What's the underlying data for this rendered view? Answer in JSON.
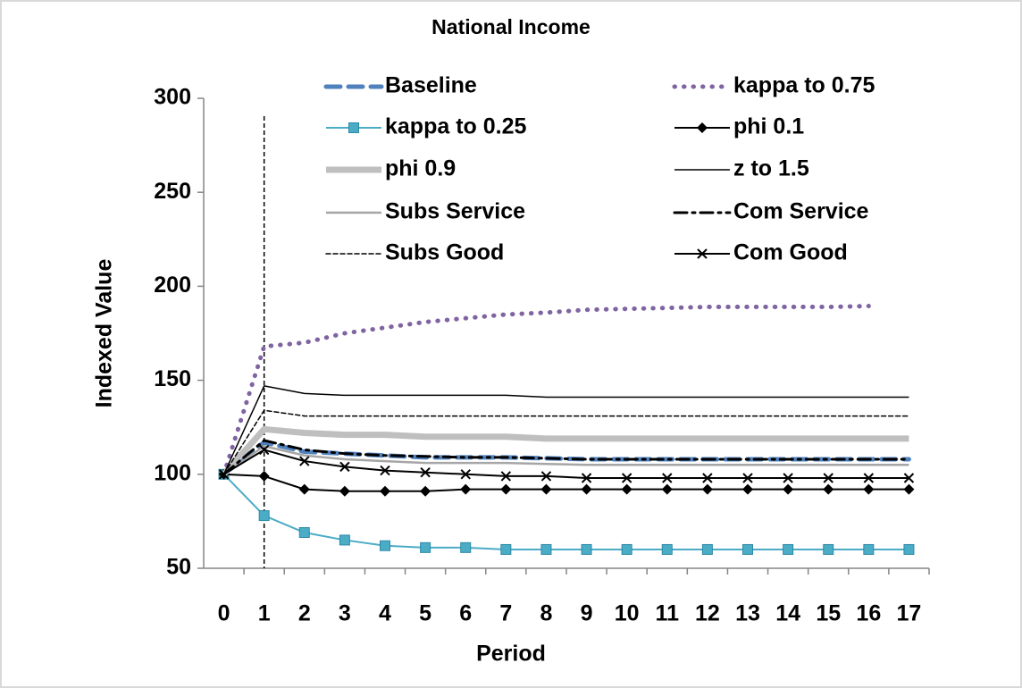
{
  "chart_data": {
    "type": "line",
    "title": "National Income",
    "x_label": "Period",
    "y_label": "Indexed Value",
    "categories": [
      "0",
      "1",
      "2",
      "3",
      "4",
      "5",
      "6",
      "7",
      "8",
      "9",
      "10",
      "11",
      "12",
      "13",
      "14",
      "15",
      "16",
      "17"
    ],
    "ylim": [
      50,
      300
    ],
    "yticks": [
      50,
      100,
      150,
      200,
      250,
      300
    ],
    "reference_line_category": 1,
    "series": [
      {
        "name": "Baseline",
        "color": "#4f81bd",
        "width": 5,
        "dash": "16,9",
        "marker": "none",
        "values": [
          100,
          117,
          112,
          111,
          110,
          109,
          109,
          109,
          108.5,
          108,
          108,
          108,
          108,
          108,
          108,
          108,
          108,
          108
        ]
      },
      {
        "name": "kappa to 0.75",
        "color": "#8064a2",
        "width": 5,
        "dash": "0.5,10",
        "marker": "none",
        "values": [
          100,
          168,
          170,
          175,
          178,
          181,
          183,
          185,
          186,
          187.5,
          188,
          188.5,
          189,
          189,
          189,
          189,
          189.5,
          null
        ]
      },
      {
        "name": "kappa to 0.25",
        "color": "#4bacc6",
        "width": 2,
        "dash": "none",
        "marker": "square",
        "values": [
          100,
          78,
          69,
          65,
          62,
          61,
          61,
          60,
          60,
          60,
          60,
          60,
          60,
          60,
          60,
          60,
          60,
          60
        ]
      },
      {
        "name": "phi 0.1",
        "color": "#000000",
        "width": 2,
        "dash": "none",
        "marker": "diamond",
        "values": [
          100,
          99,
          92,
          91,
          91,
          91,
          92,
          92,
          92,
          92,
          92,
          92,
          92,
          92,
          92,
          92,
          92,
          92
        ]
      },
      {
        "name": "phi 0.9",
        "color": "#bfbfbf",
        "width": 7,
        "dash": "none",
        "marker": "none",
        "values": [
          100,
          124,
          122,
          121,
          121,
          120,
          120,
          120,
          119,
          119,
          119,
          119,
          119,
          119,
          119,
          119,
          119,
          119
        ]
      },
      {
        "name": "z to 1.5",
        "color": "#000000",
        "width": 1.5,
        "dash": "none",
        "marker": "none",
        "values": [
          100,
          147,
          143,
          142,
          142,
          142,
          142,
          142,
          141,
          141,
          141,
          141,
          141,
          141,
          141,
          141,
          141,
          141
        ]
      },
      {
        "name": "Subs Service",
        "color": "#a6a6a6",
        "width": 2.5,
        "dash": "none",
        "marker": "none",
        "values": [
          100,
          115,
          110,
          108,
          107,
          106,
          106,
          106,
          105.5,
          105,
          105,
          105,
          105,
          105,
          105,
          105,
          105,
          105
        ]
      },
      {
        "name": "Com Service",
        "color": "#000000",
        "width": 3,
        "dash": "14,6,3,6",
        "marker": "none",
        "values": [
          100,
          118,
          113,
          111,
          110,
          109.5,
          109,
          109,
          108.5,
          108,
          108,
          108,
          108,
          108,
          108,
          108,
          108,
          108
        ]
      },
      {
        "name": "Subs Good",
        "color": "#000000",
        "width": 1.5,
        "dash": "5,3",
        "marker": "none",
        "values": [
          100,
          134,
          131,
          131,
          131,
          131,
          131,
          131,
          131,
          131,
          131,
          131,
          131,
          131,
          131,
          131,
          131,
          131
        ]
      },
      {
        "name": "Com Good",
        "color": "#000000",
        "width": 2,
        "dash": "none",
        "marker": "x",
        "values": [
          100,
          113,
          107,
          104,
          102,
          101,
          100,
          99,
          99,
          98,
          98,
          98,
          98,
          98,
          98,
          98,
          98,
          98
        ]
      }
    ]
  }
}
